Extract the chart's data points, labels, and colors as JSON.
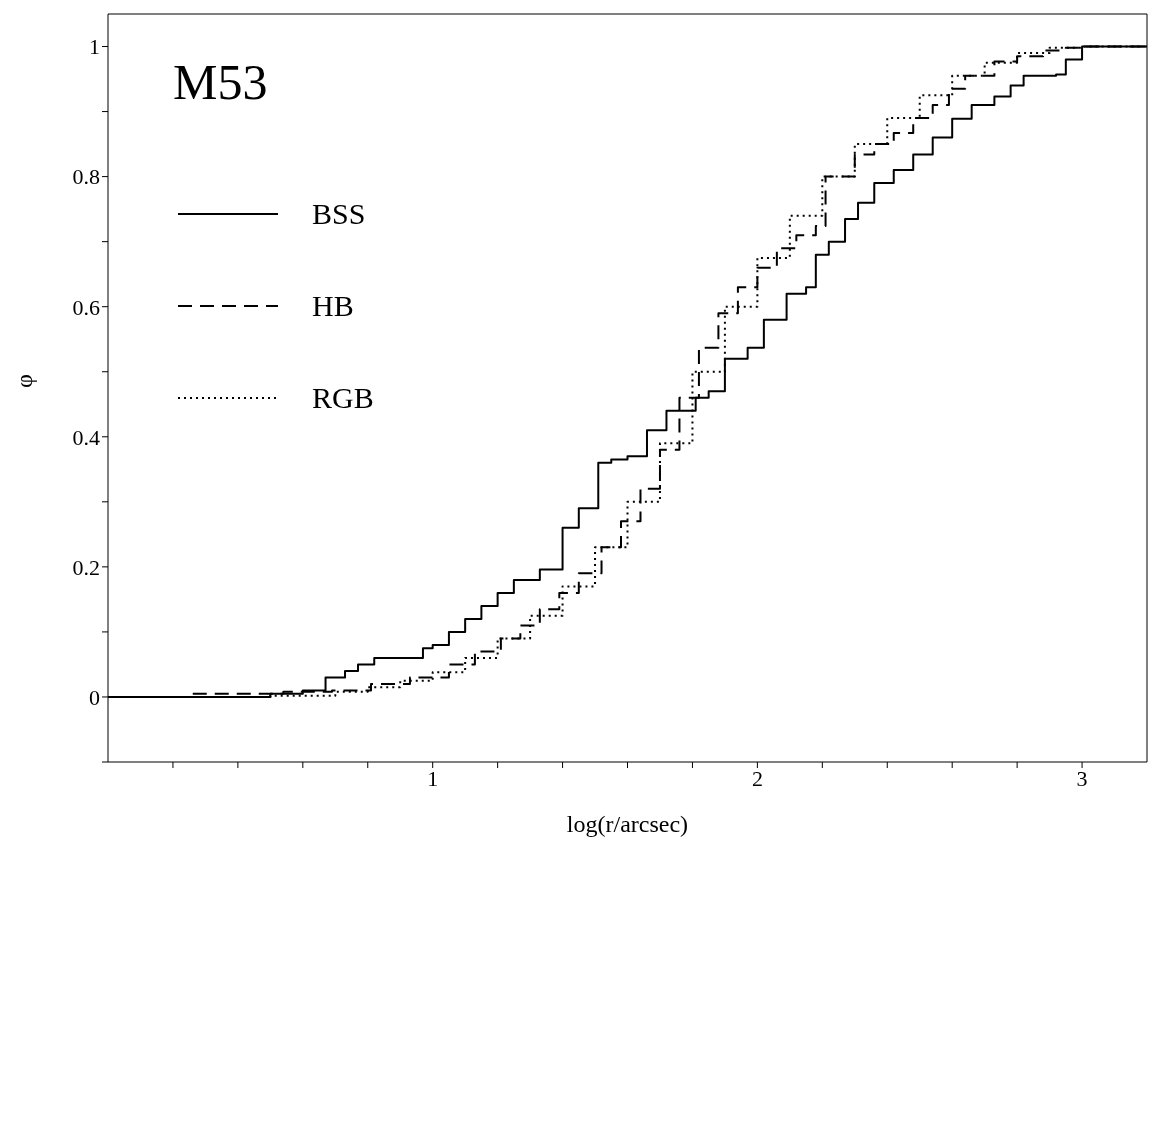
{
  "chart_data": {
    "type": "step",
    "title": "M53",
    "xlabel": "log(r/arcsec)",
    "ylabel": "φ",
    "xlim": [
      0,
      3.2
    ],
    "ylim": [
      -0.1,
      1.05
    ],
    "xticks": [
      {
        "value": 0.2,
        "label": null
      },
      {
        "value": 0.4,
        "label": null
      },
      {
        "value": 0.6,
        "label": null
      },
      {
        "value": 0.8,
        "label": null
      },
      1,
      {
        "value": 1.2,
        "label": null
      },
      {
        "value": 1.4,
        "label": null
      },
      {
        "value": 1.6,
        "label": null
      },
      {
        "value": 1.8,
        "label": null
      },
      2,
      {
        "value": 2.2,
        "label": null
      },
      {
        "value": 2.4,
        "label": null
      },
      {
        "value": 2.6,
        "label": null
      },
      {
        "value": 2.8,
        "label": null
      },
      3
    ],
    "yticks": [
      {
        "value": -0.1,
        "label": null
      },
      0,
      {
        "value": 0.1,
        "label": null
      },
      0.2,
      {
        "value": 0.3,
        "label": null
      },
      0.4,
      {
        "value": 0.5,
        "label": null
      },
      0.6,
      {
        "value": 0.7,
        "label": null
      },
      0.8,
      {
        "value": 0.9,
        "label": null
      },
      1
    ],
    "legend": "top left",
    "grid": false,
    "series": [
      {
        "name": "BSS",
        "color": "#000000",
        "line_style": "solid",
        "x": [
          0,
          0.5,
          0.6,
          0.67,
          0.73,
          0.77,
          0.82,
          0.97,
          1.0,
          1.05,
          1.1,
          1.15,
          1.2,
          1.25,
          1.33,
          1.4,
          1.45,
          1.51,
          1.55,
          1.6,
          1.66,
          1.72,
          1.81,
          1.85,
          1.9,
          1.97,
          2.02,
          2.09,
          2.15,
          2.18,
          2.22,
          2.27,
          2.31,
          2.36,
          2.42,
          2.48,
          2.54,
          2.6,
          2.66,
          2.73,
          2.78,
          2.82,
          2.92,
          2.95,
          3.0,
          3.2
        ],
        "values": [
          0,
          0.005,
          0.01,
          0.03,
          0.04,
          0.05,
          0.06,
          0.075,
          0.08,
          0.1,
          0.12,
          0.14,
          0.16,
          0.18,
          0.196,
          0.26,
          0.29,
          0.36,
          0.365,
          0.37,
          0.41,
          0.44,
          0.46,
          0.47,
          0.52,
          0.537,
          0.58,
          0.62,
          0.63,
          0.68,
          0.7,
          0.735,
          0.76,
          0.79,
          0.81,
          0.834,
          0.86,
          0.889,
          0.91,
          0.923,
          0.94,
          0.955,
          0.957,
          0.98,
          1,
          1
        ]
      },
      {
        "name": "HB",
        "color": "#000000",
        "line_style": "dashed",
        "x": [
          0,
          0.26,
          0.54,
          0.69,
          0.81,
          0.93,
          1.05,
          1.13,
          1.21,
          1.27,
          1.33,
          1.39,
          1.45,
          1.52,
          1.58,
          1.64,
          1.7,
          1.76,
          1.82,
          1.88,
          1.94,
          2.0,
          2.06,
          2.12,
          2.18,
          2.21,
          2.3,
          2.36,
          2.42,
          2.48,
          2.54,
          2.59,
          2.64,
          2.73,
          2.8,
          2.88,
          2.95,
          3.0,
          3.2
        ],
        "values": [
          0,
          0.005,
          0.008,
          0.01,
          0.02,
          0.03,
          0.05,
          0.07,
          0.09,
          0.11,
          0.135,
          0.16,
          0.19,
          0.23,
          0.27,
          0.32,
          0.38,
          0.46,
          0.537,
          0.59,
          0.63,
          0.66,
          0.69,
          0.71,
          0.724,
          0.8,
          0.834,
          0.85,
          0.867,
          0.89,
          0.91,
          0.935,
          0.955,
          0.977,
          0.985,
          0.994,
          0.998,
          1,
          1
        ]
      },
      {
        "name": "RGB",
        "color": "#000000",
        "line_style": "dotted",
        "x": [
          0,
          0.5,
          0.7,
          0.8,
          0.9,
          1.0,
          1.1,
          1.2,
          1.3,
          1.4,
          1.5,
          1.6,
          1.7,
          1.8,
          1.9,
          2.0,
          2.1,
          2.2,
          2.3,
          2.4,
          2.5,
          2.6,
          2.7,
          2.8,
          2.9,
          3.0,
          3.2
        ],
        "values": [
          0,
          0.002,
          0.008,
          0.015,
          0.025,
          0.038,
          0.06,
          0.09,
          0.125,
          0.17,
          0.23,
          0.3,
          0.39,
          0.5,
          0.6,
          0.675,
          0.74,
          0.8,
          0.85,
          0.89,
          0.925,
          0.955,
          0.975,
          0.99,
          0.998,
          1,
          1
        ]
      }
    ]
  }
}
